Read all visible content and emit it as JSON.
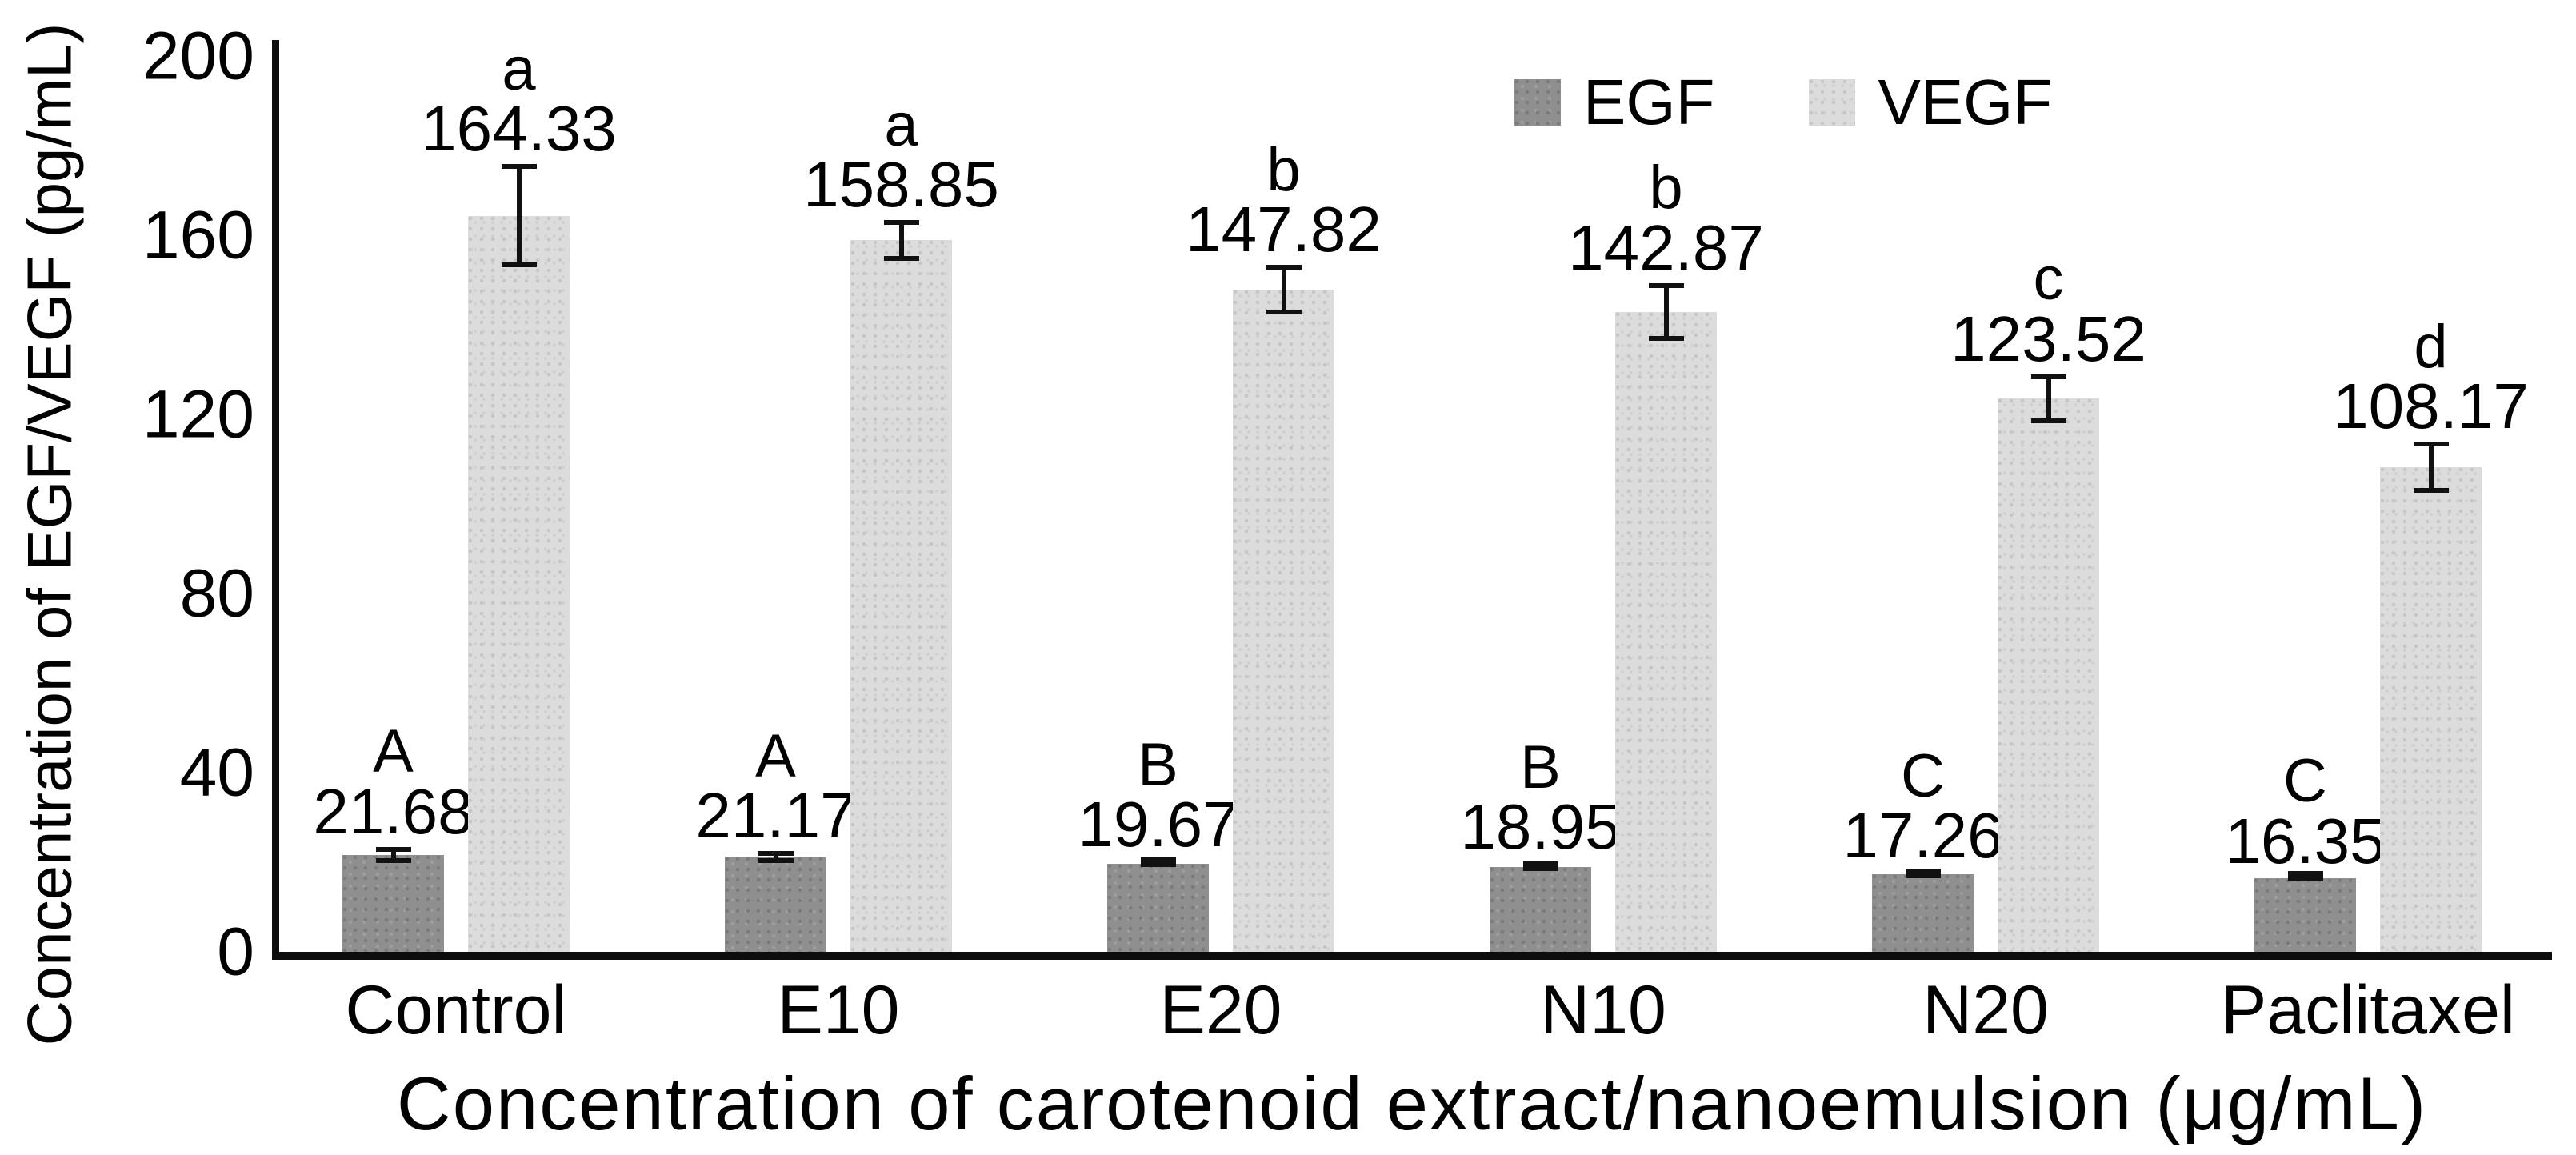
{
  "chart_data": {
    "type": "bar",
    "title": "",
    "categories": [
      "Control",
      "E10",
      "E20",
      "N10",
      "N20",
      "Paclitaxel"
    ],
    "series": [
      {
        "name": "EGF",
        "color": "#8f8f8f",
        "values": [
          21.68,
          21.17,
          19.67,
          18.95,
          17.26,
          16.35
        ],
        "errors": [
          1.8,
          1.3,
          0.8,
          1.0,
          0.8,
          0.5
        ],
        "sig_letters": [
          "A",
          "A",
          "B",
          "B",
          "C",
          "C"
        ]
      },
      {
        "name": "VEGF",
        "color": "#dcdcdc",
        "values": [
          164.33,
          158.85,
          147.82,
          142.87,
          123.52,
          108.17
        ],
        "errors": [
          11.5,
          4.5,
          5.5,
          6.5,
          5.5,
          5.7
        ],
        "sig_letters": [
          "a",
          "a",
          "b",
          "b",
          "c",
          "d"
        ]
      }
    ],
    "xlabel": "Concentration of carotenoid extract/nanoemulsion (μg/mL)",
    "ylabel": "Concentration of EGF/VEGF (pg/mL)",
    "yticks": [
      0,
      40,
      80,
      120,
      160,
      200
    ],
    "ylim": [
      0,
      200
    ],
    "legend": [
      "EGF",
      "VEGF"
    ],
    "legend_position": "top-right",
    "grid": false,
    "error_bars": true,
    "axis_color": "#0d0d0d",
    "text_color": "#000000",
    "background_color": "#ffffff"
  }
}
